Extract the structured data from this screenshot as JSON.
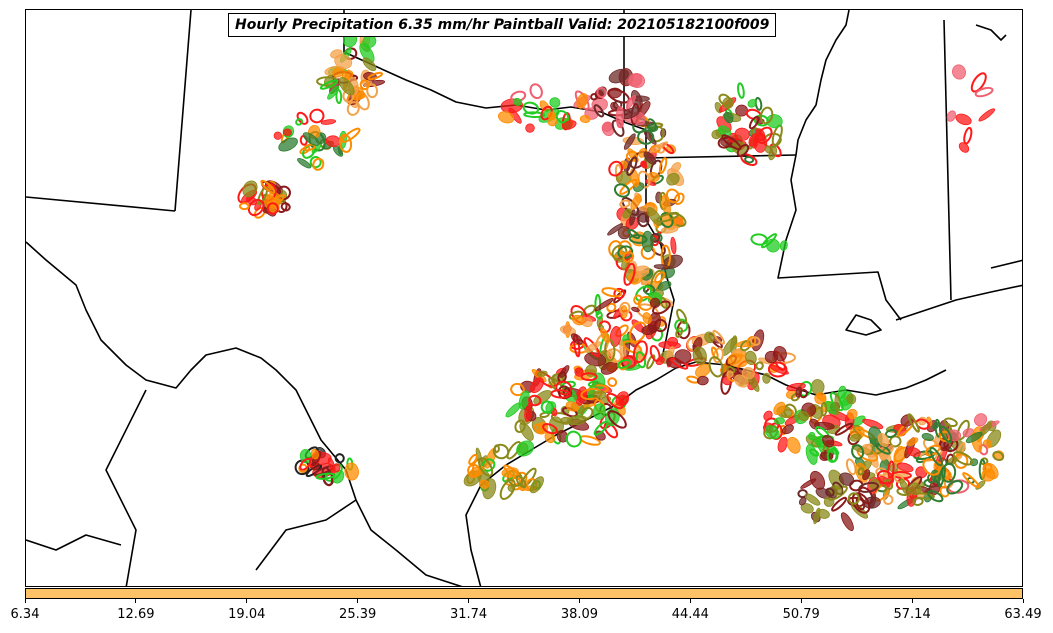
{
  "title": "Hourly Precipitation 6.35 mm/hr Paintball Valid: 202105182100f009",
  "colorbar": {
    "color": "#ffc266",
    "ticks": [
      "6.34",
      "12.69",
      "19.04",
      "25.39",
      "31.74",
      "38.09",
      "44.44",
      "50.79",
      "57.14",
      "63.49"
    ]
  },
  "palette": {
    "orange": "#ff8c00",
    "light_orange": "#f4a24a",
    "red": "#ff1a1a",
    "pink": "#f06070",
    "dark_red": "#8b1a1a",
    "maroon": "#6e2a2a",
    "green": "#22cc22",
    "dark_green": "#2e7d32",
    "olive": "#8a8a1a",
    "black": "#222222"
  },
  "map": {
    "region": "Texas / Louisiana Gulf Coast"
  }
}
